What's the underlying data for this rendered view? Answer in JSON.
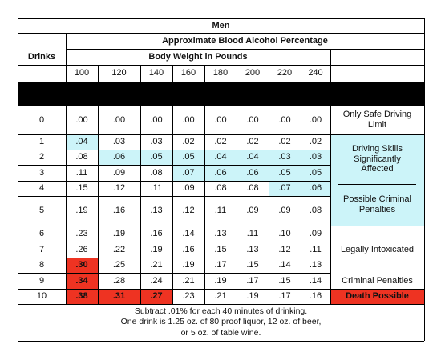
{
  "table": {
    "title": "Men",
    "subtitle": "Approximate Blood Alcohol Percentage",
    "drinks_header": "Drinks",
    "weight_header": "Body Weight in Pounds",
    "weights": [
      "100",
      "120",
      "140",
      "160",
      "180",
      "200",
      "220",
      "240"
    ],
    "rows": [
      {
        "drinks": "0",
        "values": [
          ".00",
          ".00",
          ".00",
          ".00",
          ".00",
          ".00",
          ".00",
          ".00"
        ]
      },
      {
        "drinks": "1",
        "values": [
          ".04",
          ".03",
          ".03",
          ".02",
          ".02",
          ".02",
          ".02",
          ".02"
        ]
      },
      {
        "drinks": "2",
        "values": [
          ".08",
          ".06",
          ".05",
          ".05",
          ".04",
          ".04",
          ".03",
          ".03"
        ]
      },
      {
        "drinks": "3",
        "values": [
          ".11",
          ".09",
          ".08",
          ".07",
          ".06",
          ".06",
          ".05",
          ".05"
        ]
      },
      {
        "drinks": "4",
        "values": [
          ".15",
          ".12",
          ".11",
          ".09",
          ".08",
          ".08",
          ".07",
          ".06"
        ]
      },
      {
        "drinks": "5",
        "values": [
          ".19",
          ".16",
          ".13",
          ".12",
          ".11",
          ".09",
          ".09",
          ".08"
        ]
      },
      {
        "drinks": "6",
        "values": [
          ".23",
          ".19",
          ".16",
          ".14",
          ".13",
          ".11",
          ".10",
          ".09"
        ]
      },
      {
        "drinks": "7",
        "values": [
          ".26",
          ".22",
          ".19",
          ".16",
          ".15",
          ".13",
          ".12",
          ".11"
        ]
      },
      {
        "drinks": "8",
        "values": [
          ".30",
          ".25",
          ".21",
          ".19",
          ".17",
          ".15",
          ".14",
          ".13"
        ]
      },
      {
        "drinks": "9",
        "values": [
          ".34",
          ".28",
          ".24",
          ".21",
          ".19",
          ".17",
          ".15",
          ".14"
        ]
      },
      {
        "drinks": "10",
        "values": [
          ".38",
          ".31",
          ".27",
          ".23",
          ".21",
          ".19",
          ".17",
          ".16"
        ]
      }
    ],
    "status_labels": {
      "safe": "Only Safe Driving Limit",
      "impaired": "Driving Skills Significantly Affected",
      "possible_penalties": "Possible Criminal Penalties",
      "intoxicated": "Legally Intoxicated",
      "criminal_penalties": "Criminal Penalties",
      "death": "Death Possible"
    },
    "footnote_lines": [
      "Subtract .01% for each 40 minutes of drinking.",
      "One drink is 1.25 oz. of 80 proof liquor, 12 oz. of beer,",
      "or 5 oz. of table wine."
    ],
    "colors": {
      "border": "#000000",
      "impaired_zone": "#ccf4f9",
      "danger_zone": "#ee3322",
      "black_band": "#000000"
    }
  }
}
